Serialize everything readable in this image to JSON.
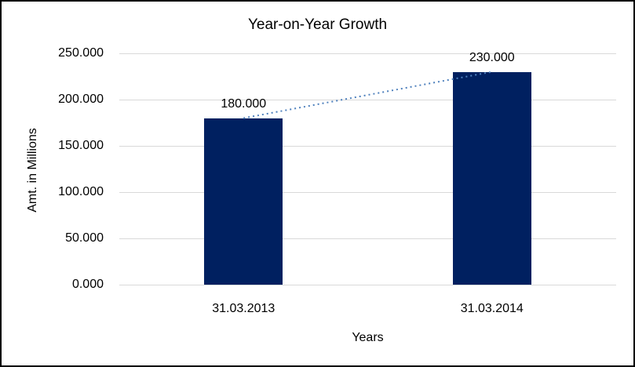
{
  "chart_data": {
    "type": "bar",
    "title": "Year-on-Year Growth",
    "xlabel": "Years",
    "ylabel": "Amt. in Millions",
    "categories": [
      "31.03.2013",
      "31.03.2014"
    ],
    "values": [
      180,
      230
    ],
    "value_labels": [
      "180.000",
      "230.000"
    ],
    "ylim": [
      0,
      250
    ],
    "yticks": [
      {
        "value": 0,
        "label": "0.000"
      },
      {
        "value": 50,
        "label": "50.000"
      },
      {
        "value": 100,
        "label": "100.000"
      },
      {
        "value": 150,
        "label": "150.000"
      },
      {
        "value": 200,
        "label": "200.000"
      },
      {
        "value": 250,
        "label": "250.000"
      }
    ],
    "grid": true,
    "legend": false,
    "bar_color": "#002060",
    "gridline_color": "#d9d9d9",
    "trendline": {
      "style": "dotted",
      "color": "#4f81bd"
    }
  }
}
